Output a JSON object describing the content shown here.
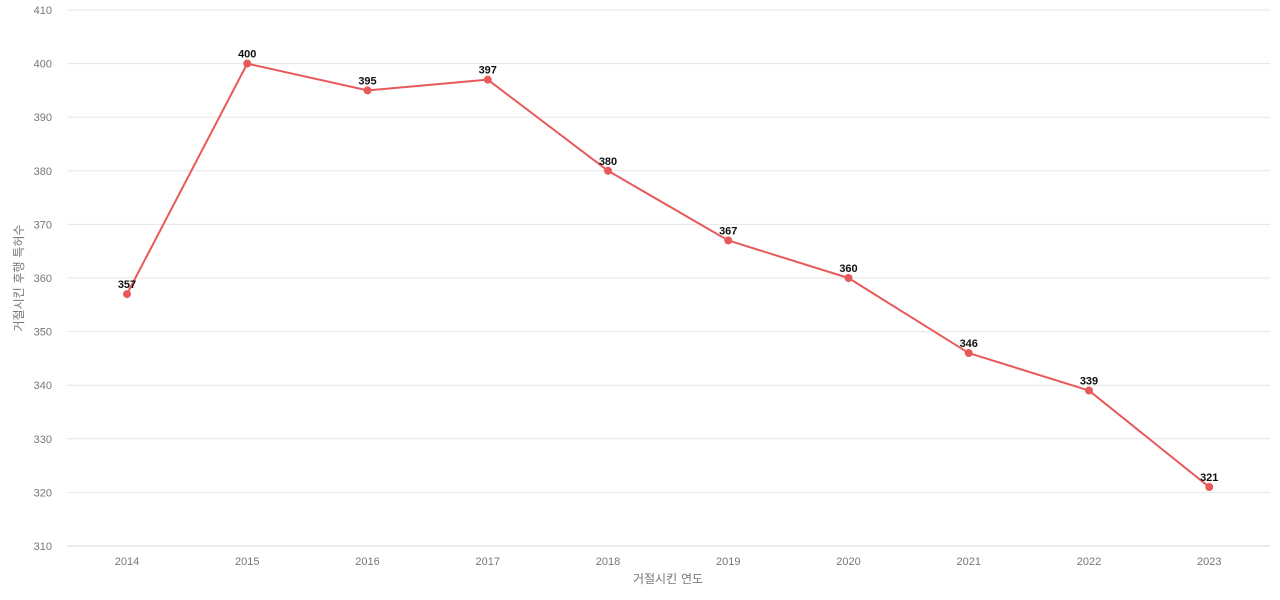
{
  "chart_data": {
    "type": "line",
    "title": "",
    "xlabel": "거절시킨 연도",
    "ylabel": "거절시킨 후행 특허수",
    "categories": [
      "2014",
      "2015",
      "2016",
      "2017",
      "2018",
      "2019",
      "2020",
      "2021",
      "2022",
      "2023"
    ],
    "series": [
      {
        "values": [
          357,
          400,
          395,
          397,
          380,
          367,
          360,
          346,
          339,
          321
        ],
        "color": "#e85a5a"
      }
    ],
    "ylim": [
      310,
      410
    ],
    "yticks": [
      310,
      320,
      330,
      340,
      350,
      360,
      370,
      380,
      390,
      400,
      410
    ],
    "ytick_labels": [
      "310",
      "320",
      "330",
      "340",
      "350",
      "360",
      "370",
      "380",
      "390",
      "400",
      "410"
    ],
    "grid": true,
    "legend": "none",
    "data_labels": true
  }
}
